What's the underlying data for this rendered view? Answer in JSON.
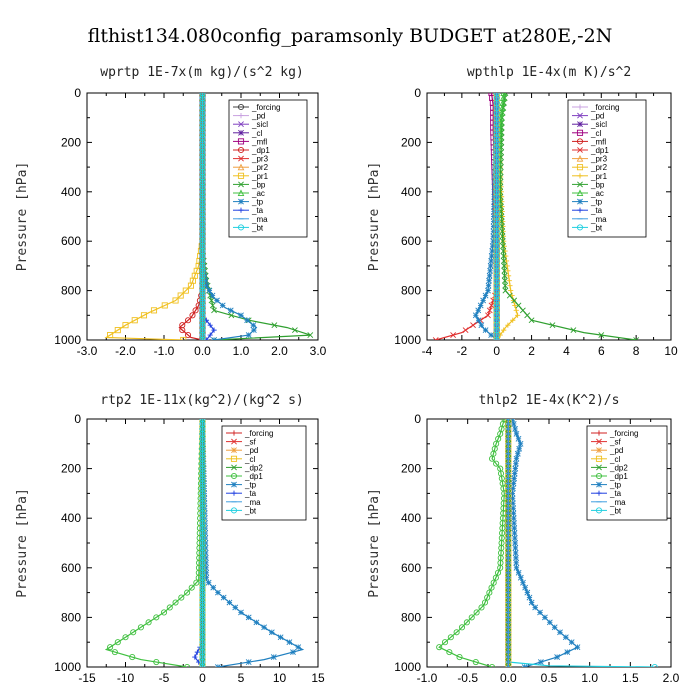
{
  "figure": {
    "title": "flthist134.080config_paramsonly  BUDGET at280E,-2N"
  },
  "chart_data": [
    {
      "type": "line",
      "title": "wprtp  1E-7x(m kg)/(s^2 kg)",
      "ylabel": "Pressure [hPa]",
      "xlim": [
        -3,
        3
      ],
      "ylim": [
        1000,
        0
      ],
      "xticks": [
        "-3.0",
        "-2.0",
        "-1.0",
        "0.0",
        "1.0",
        "2.0",
        "3.0"
      ],
      "yticks": [
        "0",
        "200",
        "400",
        "600",
        "800",
        "1000"
      ],
      "legend_position": "upper-right",
      "series": [
        {
          "name": "_forcing",
          "color": "#404040",
          "marker": "circle",
          "x": [
            0,
            0
          ],
          "y": [
            0,
            1000
          ]
        },
        {
          "name": "_pd",
          "color": "#c8a0e0",
          "marker": "plus",
          "x": [
            0,
            0
          ],
          "y": [
            0,
            1000
          ]
        },
        {
          "name": "_sicl",
          "color": "#8040c0",
          "marker": "x",
          "x": [
            0,
            0
          ],
          "y": [
            0,
            1000
          ]
        },
        {
          "name": "_cl",
          "color": "#6020a0",
          "marker": "star",
          "x": [
            0,
            0
          ],
          "y": [
            0,
            1000
          ]
        },
        {
          "name": "_mfl",
          "color": "#a00080",
          "marker": "square",
          "x": [
            0,
            0
          ],
          "y": [
            0,
            1000
          ]
        },
        {
          "name": "_dp1",
          "color": "#d02020",
          "marker": "circle",
          "x": [
            0,
            0,
            0,
            -0.1,
            -0.3,
            -0.6,
            -0.3,
            0
          ],
          "y": [
            0,
            700,
            800,
            860,
            910,
            950,
            990,
            1000
          ]
        },
        {
          "name": "_pr3",
          "color": "#e03030",
          "marker": "x",
          "x": [
            0,
            0
          ],
          "y": [
            0,
            1000
          ]
        },
        {
          "name": "_pr2",
          "color": "#f0a040",
          "marker": "triangle",
          "x": [
            0,
            0
          ],
          "y": [
            0,
            1000
          ]
        },
        {
          "name": "_pr1",
          "color": "#f0c020",
          "marker": "square",
          "x": [
            0,
            0,
            -0.1,
            -0.3,
            -0.7,
            -1.4,
            -2.0,
            -2.5,
            -0.5
          ],
          "y": [
            0,
            600,
            700,
            780,
            840,
            890,
            940,
            990,
            1000
          ]
        },
        {
          "name": "_bp",
          "color": "#30a030",
          "marker": "x",
          "x": [
            0,
            0,
            0.1,
            0.3,
            1.2,
            2.2,
            2.8,
            0.3
          ],
          "y": [
            0,
            640,
            760,
            880,
            920,
            950,
            980,
            1000
          ]
        },
        {
          "name": "_ac",
          "color": "#40c040",
          "marker": "triangle",
          "x": [
            0,
            0
          ],
          "y": [
            0,
            1000
          ]
        },
        {
          "name": "_tp",
          "color": "#2080c0",
          "marker": "star",
          "x": [
            0,
            0,
            0.1,
            0.3,
            0.6,
            1.0,
            1.4,
            1.2,
            0.3
          ],
          "y": [
            0,
            700,
            780,
            830,
            870,
            900,
            950,
            980,
            1000
          ]
        },
        {
          "name": "_ta",
          "color": "#2040e0",
          "marker": "plus",
          "x": [
            0,
            0,
            0.3,
            0.1
          ],
          "y": [
            0,
            900,
            960,
            1000
          ]
        },
        {
          "name": "_ma",
          "color": "#40a0e0",
          "marker": "dash",
          "x": [
            0,
            0
          ],
          "y": [
            0,
            1000
          ]
        },
        {
          "name": "_bt",
          "color": "#20d0e0",
          "marker": "circle",
          "x": [
            0,
            0
          ],
          "y": [
            0,
            1000
          ]
        }
      ]
    },
    {
      "type": "line",
      "title": "wpthlp  1E-4x(m K)/s^2",
      "ylabel": "Pressure [hPa]",
      "xlim": [
        -4,
        10
      ],
      "ylim": [
        1000,
        0
      ],
      "xticks": [
        "-4",
        "-2",
        "0",
        "2",
        "4",
        "6",
        "8",
        "10"
      ],
      "yticks": [
        "0",
        "200",
        "400",
        "600",
        "800",
        "1000"
      ],
      "legend_position": "upper-right",
      "series": [
        {
          "name": "_forcing",
          "color": "#c8a0e0",
          "marker": "plus",
          "x": [
            0,
            0
          ],
          "y": [
            0,
            1000
          ]
        },
        {
          "name": "_pd",
          "color": "#8040c0",
          "marker": "x",
          "x": [
            0,
            0
          ],
          "y": [
            0,
            1000
          ]
        },
        {
          "name": "_sicl",
          "color": "#6020a0",
          "marker": "star",
          "x": [
            0,
            0
          ],
          "y": [
            0,
            1000
          ]
        },
        {
          "name": "_cl",
          "color": "#a00080",
          "marker": "square",
          "x": [
            -0.3,
            -0.2,
            -0.2,
            0,
            0
          ],
          "y": [
            0,
            50,
            150,
            600,
            1000
          ]
        },
        {
          "name": "_mfl",
          "color": "#d02020",
          "marker": "circle",
          "x": [
            0,
            0
          ],
          "y": [
            0,
            1000
          ]
        },
        {
          "name": "_dp1",
          "color": "#e03030",
          "marker": "x",
          "x": [
            0,
            0,
            -0.5,
            -2.0,
            -3.5
          ],
          "y": [
            0,
            800,
            900,
            970,
            1000
          ]
        },
        {
          "name": "_pr3",
          "color": "#f0a040",
          "marker": "triangle",
          "x": [
            0,
            0
          ],
          "y": [
            0,
            1000
          ]
        },
        {
          "name": "_pr2",
          "color": "#f0c020",
          "marker": "square",
          "x": [
            0,
            0
          ],
          "y": [
            0,
            1000
          ]
        },
        {
          "name": "_pr1",
          "color": "#f0c020",
          "marker": "plus",
          "x": [
            0,
            0.2,
            0.4,
            0.8,
            1.2,
            0.5,
            0
          ],
          "y": [
            0,
            300,
            600,
            800,
            900,
            950,
            1000
          ]
        },
        {
          "name": "_bp",
          "color": "#30a030",
          "marker": "x",
          "x": [
            0.5,
            0.3,
            0.2,
            0.5,
            2.0,
            5.0,
            8.0
          ],
          "y": [
            0,
            100,
            400,
            800,
            920,
            970,
            1000
          ]
        },
        {
          "name": "_ac",
          "color": "#40c040",
          "marker": "triangle",
          "x": [
            0.4,
            0.2,
            0,
            0
          ],
          "y": [
            0,
            150,
            400,
            1000
          ]
        },
        {
          "name": "_tp",
          "color": "#2080c0",
          "marker": "star",
          "x": [
            0,
            -0.2,
            -0.5,
            -1.2,
            -0.8,
            0
          ],
          "y": [
            0,
            600,
            800,
            900,
            950,
            1000
          ]
        },
        {
          "name": "_ta",
          "color": "#2040e0",
          "marker": "plus",
          "x": [
            0,
            0
          ],
          "y": [
            0,
            1000
          ]
        },
        {
          "name": "_ma",
          "color": "#40a0e0",
          "marker": "dash",
          "x": [
            0,
            0
          ],
          "y": [
            0,
            1000
          ]
        },
        {
          "name": "_bt",
          "color": "#20d0e0",
          "marker": "circle",
          "x": [
            0,
            0
          ],
          "y": [
            0,
            1000
          ]
        }
      ]
    },
    {
      "type": "line",
      "title": "rtp2  1E-11x(kg^2)/(kg^2 s)",
      "ylabel": "Pressure [hPa]",
      "xlim": [
        -15,
        15
      ],
      "ylim": [
        1000,
        0
      ],
      "xticks": [
        "-15",
        "-10",
        "-5",
        "0",
        "5",
        "10",
        "15"
      ],
      "yticks": [
        "0",
        "200",
        "400",
        "600",
        "800",
        "1000"
      ],
      "legend_position": "upper-right",
      "series": [
        {
          "name": "_forcing",
          "color": "#d02020",
          "marker": "plus",
          "x": [
            0,
            0
          ],
          "y": [
            0,
            1000
          ]
        },
        {
          "name": "_sf",
          "color": "#e03030",
          "marker": "x",
          "x": [
            0,
            0
          ],
          "y": [
            0,
            1000
          ]
        },
        {
          "name": "_pd",
          "color": "#f0a040",
          "marker": "star",
          "x": [
            0,
            0
          ],
          "y": [
            0,
            1000
          ]
        },
        {
          "name": "_cl",
          "color": "#f0c020",
          "marker": "square",
          "x": [
            0,
            0
          ],
          "y": [
            0,
            1000
          ]
        },
        {
          "name": "_dp2",
          "color": "#30a030",
          "marker": "x",
          "x": [
            0,
            0
          ],
          "y": [
            0,
            1000
          ]
        },
        {
          "name": "_dp1",
          "color": "#40c040",
          "marker": "circle",
          "x": [
            0,
            -0.5,
            -2,
            -5,
            -9,
            -12.5,
            -8,
            -2
          ],
          "y": [
            0,
            650,
            700,
            780,
            860,
            930,
            970,
            1000
          ]
        },
        {
          "name": "_tp",
          "color": "#2080c0",
          "marker": "star",
          "x": [
            0,
            0.5,
            2,
            5,
            9,
            13,
            8,
            2
          ],
          "y": [
            0,
            650,
            700,
            780,
            860,
            930,
            970,
            1000
          ]
        },
        {
          "name": "_ta",
          "color": "#2040e0",
          "marker": "plus",
          "x": [
            0,
            0,
            -1,
            0
          ],
          "y": [
            0,
            900,
            960,
            1000
          ]
        },
        {
          "name": "_ma",
          "color": "#40a0e0",
          "marker": "dash",
          "x": [
            0,
            0
          ],
          "y": [
            0,
            1000
          ]
        },
        {
          "name": "_bt",
          "color": "#20d0e0",
          "marker": "circle",
          "x": [
            0,
            0
          ],
          "y": [
            0,
            1000
          ]
        }
      ]
    },
    {
      "type": "line",
      "title": "thlp2  1E-4x(K^2)/s",
      "ylabel": "Pressure [hPa]",
      "xlim": [
        -1,
        2
      ],
      "ylim": [
        1000,
        0
      ],
      "xticks": [
        "-1.0",
        "-0.5",
        "0.0",
        "0.5",
        "1.0",
        "1.5",
        "2.0"
      ],
      "yticks": [
        "0",
        "200",
        "400",
        "600",
        "800",
        "1000"
      ],
      "legend_position": "upper-right",
      "series": [
        {
          "name": "_forcing",
          "color": "#d02020",
          "marker": "plus",
          "x": [
            0,
            0
          ],
          "y": [
            0,
            1000
          ]
        },
        {
          "name": "_sf",
          "color": "#e03030",
          "marker": "x",
          "x": [
            0,
            0
          ],
          "y": [
            0,
            1000
          ]
        },
        {
          "name": "_pd",
          "color": "#f0a040",
          "marker": "star",
          "x": [
            0,
            0
          ],
          "y": [
            0,
            1000
          ]
        },
        {
          "name": "_cl",
          "color": "#f0c020",
          "marker": "square",
          "x": [
            0,
            0
          ],
          "y": [
            0,
            1000
          ]
        },
        {
          "name": "_dp2",
          "color": "#30a030",
          "marker": "x",
          "x": [
            0,
            0
          ],
          "y": [
            0,
            1000
          ]
        },
        {
          "name": "_dp1",
          "color": "#40c040",
          "marker": "circle",
          "x": [
            -0.05,
            -0.1,
            -0.15,
            -0.2,
            -0.1,
            -0.05,
            -0.1,
            -0.3,
            -0.6,
            -0.85,
            -0.6,
            -0.2
          ],
          "y": [
            0,
            60,
            100,
            160,
            200,
            300,
            600,
            750,
            850,
            920,
            960,
            1000
          ]
        },
        {
          "name": "_tp",
          "color": "#2080c0",
          "marker": "star",
          "x": [
            0.05,
            0.1,
            0.15,
            0.1,
            0.05,
            0.1,
            0.3,
            0.6,
            0.85,
            0.6,
            0.2
          ],
          "y": [
            0,
            60,
            100,
            160,
            300,
            600,
            750,
            850,
            920,
            960,
            1000
          ]
        },
        {
          "name": "_ta",
          "color": "#2040e0",
          "marker": "plus",
          "x": [
            0,
            0
          ],
          "y": [
            0,
            1000
          ]
        },
        {
          "name": "_ma",
          "color": "#40a0e0",
          "marker": "dash",
          "x": [
            0,
            0
          ],
          "y": [
            0,
            1000
          ]
        },
        {
          "name": "_bt",
          "color": "#20d0e0",
          "marker": "circle",
          "x": [
            0,
            0,
            0.5,
            1.8
          ],
          "y": [
            0,
            980,
            995,
            1000
          ]
        }
      ]
    }
  ]
}
